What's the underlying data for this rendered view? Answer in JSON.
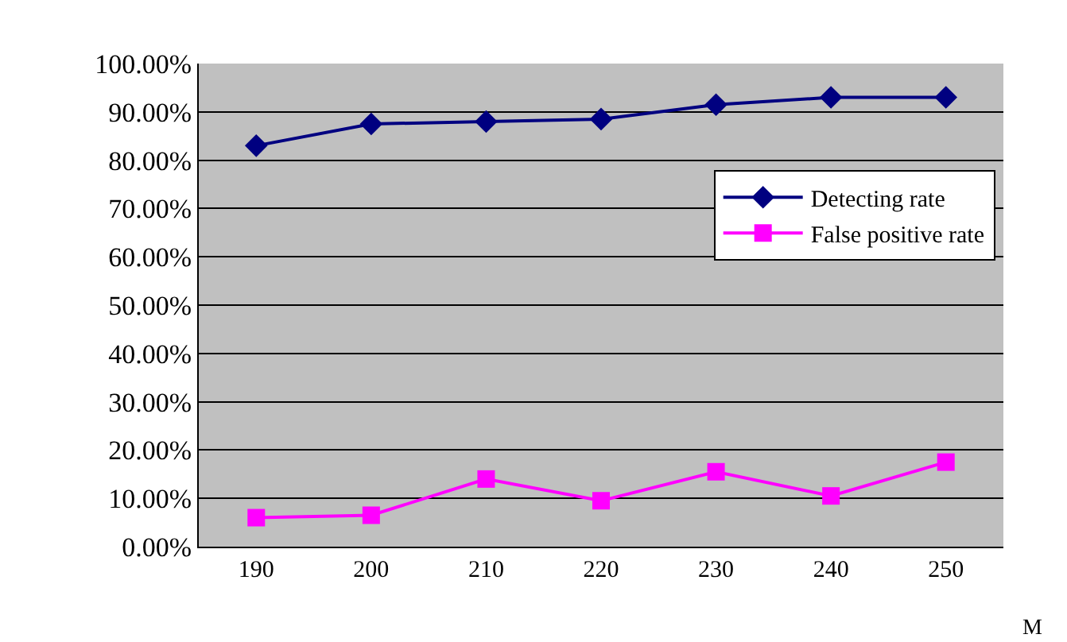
{
  "chart_data": {
    "type": "line",
    "categories": [
      "190",
      "200",
      "210",
      "220",
      "230",
      "240",
      "250"
    ],
    "xlabel": "M",
    "series": [
      {
        "name": "Detecting rate",
        "color": "#000080",
        "marker": "diamond",
        "values": [
          83,
          87.5,
          88,
          88.5,
          91.5,
          93,
          93
        ]
      },
      {
        "name": "False positive rate",
        "color": "#ff00ff",
        "marker": "square",
        "values": [
          6,
          6.5,
          14,
          9.5,
          15.5,
          10.5,
          17.5
        ]
      }
    ],
    "ylim": [
      0,
      100
    ],
    "yticks": [
      {
        "value": 0,
        "label": "0.00%"
      },
      {
        "value": 10,
        "label": "10.00%"
      },
      {
        "value": 20,
        "label": "20.00%"
      },
      {
        "value": 30,
        "label": "30.00%"
      },
      {
        "value": 40,
        "label": "40.00%"
      },
      {
        "value": 50,
        "label": "50.00%"
      },
      {
        "value": 60,
        "label": "60.00%"
      },
      {
        "value": 70,
        "label": "70.00%"
      },
      {
        "value": 80,
        "label": "80.00%"
      },
      {
        "value": 90,
        "label": "90.00%"
      },
      {
        "value": 100,
        "label": "100.00%"
      }
    ],
    "grid": "y",
    "legend": "right",
    "line_style": "solid"
  }
}
